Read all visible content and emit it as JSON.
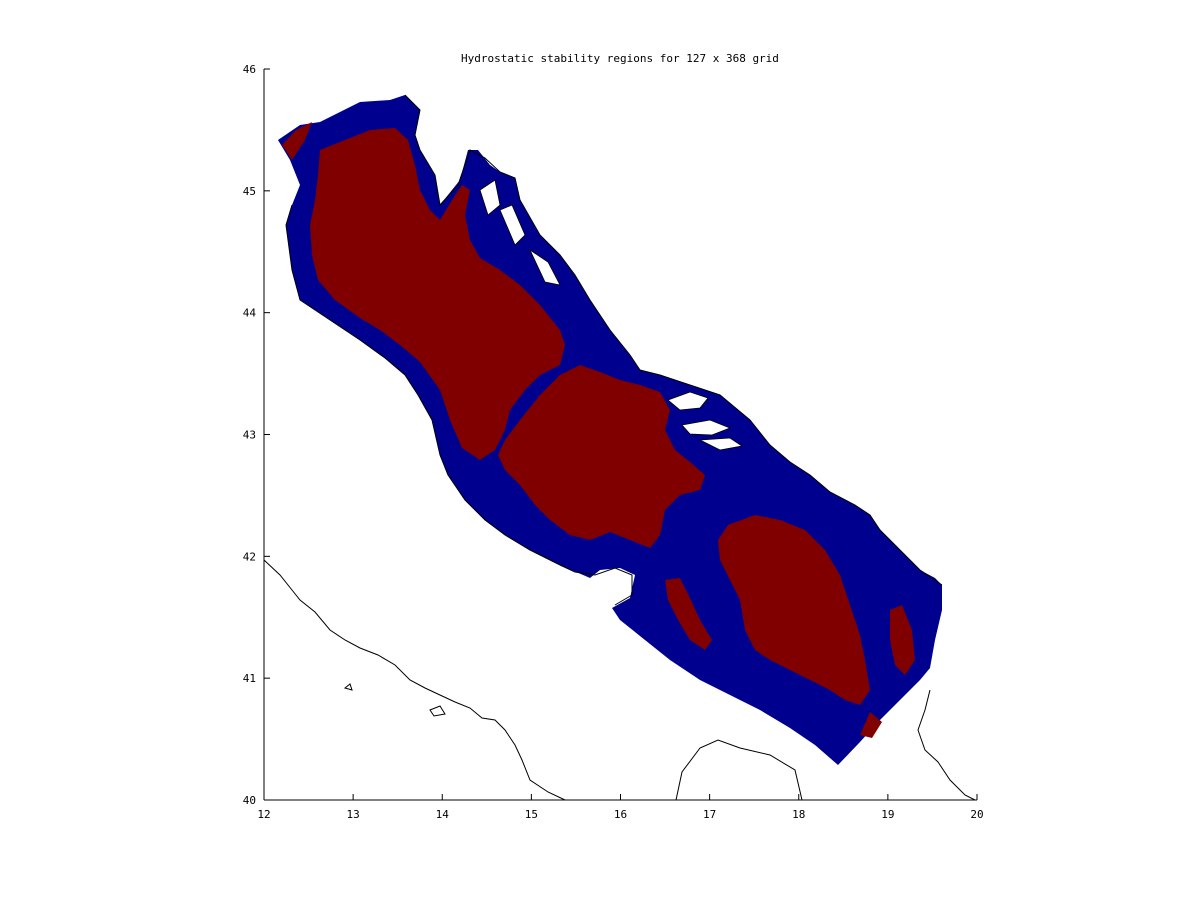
{
  "title": "Hydrostatic stability regions for 127 x 368 grid",
  "colors": {
    "stable_region": "#800000",
    "other_region": "#00008f",
    "coastline": "#000000",
    "background": "#ffffff"
  },
  "axes": {
    "xlim": [
      12,
      20
    ],
    "ylim": [
      40,
      46
    ],
    "x_ticks": [
      "12",
      "13",
      "14",
      "15",
      "16",
      "17",
      "18",
      "19",
      "20"
    ],
    "y_ticks": [
      "40",
      "41",
      "42",
      "43",
      "44",
      "45",
      "46"
    ],
    "grid": false
  }
}
